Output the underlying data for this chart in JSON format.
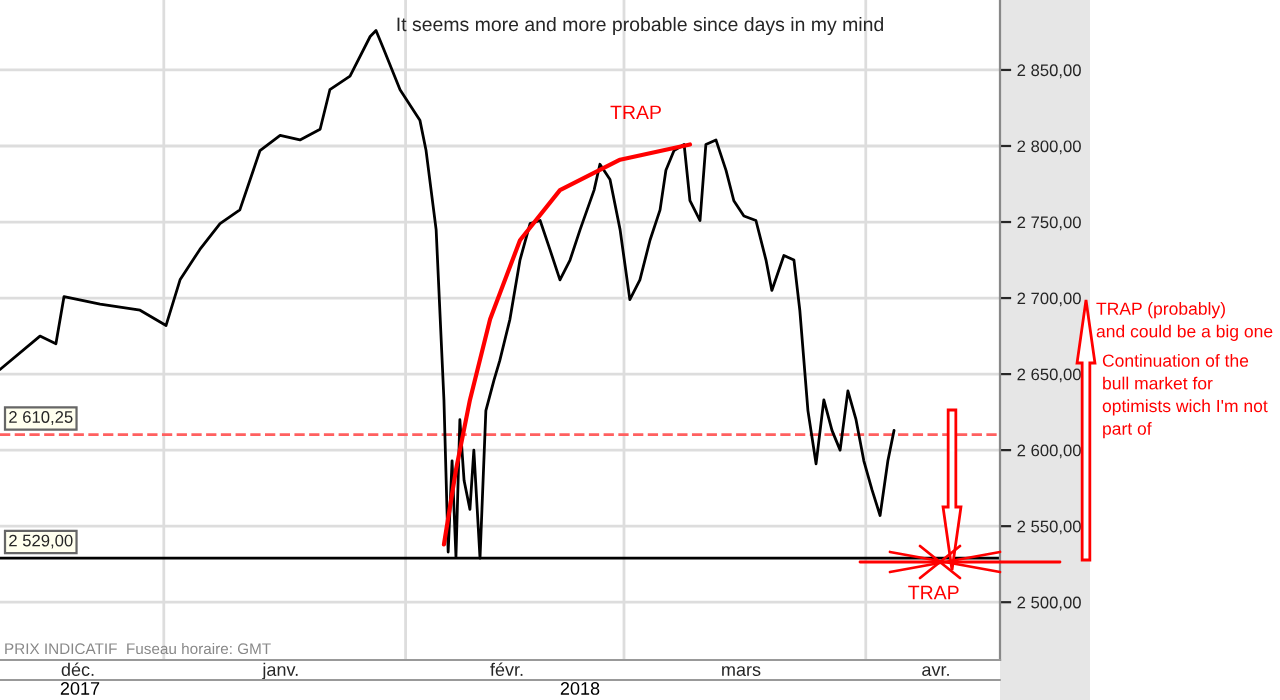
{
  "chart_data": {
    "type": "line",
    "title": "It seems more and more probable since days in my mind",
    "x": [
      "2017-12-11T00:00",
      "2017-12-16T03:00",
      "2017-12-18T04:00",
      "2017-12-19T05:00",
      "2017-12-23T20:00",
      "2017-12-28T23:00",
      "2018-01-01T07:00",
      "2018-01-03T02:00",
      "2018-01-05T15:00",
      "2018-01-08T05:00",
      "2018-01-10T18:00",
      "2018-01-13T08:00",
      "2018-01-15T22:00",
      "2018-01-18T11:00",
      "2018-01-21T01:00",
      "2018-01-22T07:00",
      "2018-01-24T21:00",
      "2018-01-27T11:00",
      "2018-01-28T05:00",
      "2018-01-29T06:00",
      "2018-01-31T07:00",
      "2018-02-02T20:00",
      "2018-02-03T15:00",
      "2018-02-04T22:00",
      "2018-02-05T22:00",
      "2018-02-06T11:00",
      "2018-02-06T23:00",
      "2018-02-07T11:00",
      "2018-02-07T23:00",
      "2018-02-08T12:00",
      "2018-02-09T06:00",
      "2018-02-09T18:00",
      "2018-02-10T13:00",
      "2018-02-11T07:00",
      "2018-02-12T08:00",
      "2018-02-13T02:00",
      "2018-02-14T09:00",
      "2018-02-15T16:00",
      "2018-02-16T23:00",
      "2018-02-18T06:00",
      "2018-02-19T12:00",
      "2018-02-20T19:00",
      "2018-02-22T02:00",
      "2018-02-23T09:00",
      "2018-02-25T04:00",
      "2018-02-25T22:00",
      "2018-02-27T05:00",
      "2018-02-28T12:00",
      "2018-03-01T18:00",
      "2018-03-03T01:00",
      "2018-03-04T08:00",
      "2018-03-05T15:00",
      "2018-03-06T09:00",
      "2018-03-07T10:00",
      "2018-03-08T17:00",
      "2018-03-09T11:00",
      "2018-03-10T18:00",
      "2018-03-11T12:00",
      "2018-03-12T19:00",
      "2018-03-14T02:00",
      "2018-03-15T02:00",
      "2018-03-16T09:00",
      "2018-03-17T22:00",
      "2018-03-19T05:00",
      "2018-03-19T23:00",
      "2018-03-21T12:00",
      "2018-03-22T19:00",
      "2018-03-23T13:00",
      "2018-03-24T14:00",
      "2018-03-25T15:00",
      "2018-03-26T15:00",
      "2018-03-27T16:00",
      "2018-03-28T17:00",
      "2018-03-29T17:00",
      "2018-03-30T18:00",
      "2018-03-31T18:00",
      "2018-04-01T19:00",
      "2018-04-02T20:00",
      "2018-04-03T20:00",
      "2018-04-04T15:00"
    ],
    "series": [
      {
        "type": "line",
        "color": "#ff0000",
        "x": [
          "2018-02-05T22:00",
          "2018-02-07T11:00",
          "2018-02-09T06:00",
          "2018-02-11T20:00",
          "2018-02-15T16:00",
          "2018-02-20T19:00",
          "2018-02-28T12:00",
          "2018-03-09T11:00"
        ],
        "values": [
          2538,
          2587,
          2633,
          2686,
          2738,
          2771,
          2791,
          2801
        ]
      },
      {
        "color": "#000000",
        "values": [
          2653,
          2675,
          2670,
          2701,
          2696,
          2692,
          2682,
          2712,
          2732,
          2749,
          2758,
          2797,
          2807,
          2804,
          2811,
          2837,
          2846,
          2872,
          2876,
          2863,
          2837,
          2817,
          2797,
          2745,
          2633,
          2533,
          2593,
          2530,
          2620,
          2580,
          2561,
          2600,
          2529,
          2626,
          2646,
          2659,
          2686,
          2725,
          2749,
          2751,
          2732,
          2712,
          2725,
          2745,
          2771,
          2788,
          2778,
          2745,
          2699,
          2712,
          2738,
          2758,
          2784,
          2797,
          2801,
          2764,
          2751,
          2801,
          2804,
          2784,
          2764,
          2754,
          2751,
          2725,
          2705,
          2728,
          2725,
          2692,
          2626,
          2591,
          2633,
          2613,
          2600,
          2639,
          2620,
          2593,
          2574,
          2557,
          2593,
          2613
        ]
      }
    ],
    "xlim": [
      "2017-12-11T00:00",
      "2018-04-18T05:00"
    ],
    "xticks": [
      {
        "value": "2017-12-21",
        "label": "déc."
      },
      {
        "value": "2018-01-01",
        "label": null
      },
      {
        "value": "2018-01-16",
        "label": "janv."
      },
      {
        "value": "2018-02-01",
        "label": null
      },
      {
        "value": "2018-02-14",
        "label": "févr."
      },
      {
        "value": "2018-03-01",
        "label": null
      },
      {
        "value": "2018-03-16",
        "label": "mars"
      },
      {
        "value": "2018-04-01",
        "label": null
      },
      {
        "value": "2018-04-10",
        "label": "avr."
      }
    ],
    "ylim": [
      2462,
      2896
    ],
    "yticks": [
      {
        "value": 2500,
        "label": "2 500,00"
      },
      {
        "value": 2550,
        "label": "2 550,00"
      },
      {
        "value": 2600,
        "label": "2 600,00"
      },
      {
        "value": 2650,
        "label": "2 650,00"
      },
      {
        "value": 2700,
        "label": "2 700,00"
      },
      {
        "value": 2750,
        "label": "2 750,00"
      },
      {
        "value": 2800,
        "label": "2 800,00"
      },
      {
        "value": 2850,
        "label": "2 850,00"
      }
    ],
    "ref_lines": [
      {
        "axis": "y",
        "value": 2529,
        "label": "2 529,00",
        "color": "#000000",
        "line_style": "solid"
      },
      {
        "axis": "y",
        "value": 2610.25,
        "label": "2 610,25",
        "color": "#ff6060",
        "line_style": "dashed"
      }
    ],
    "grid": true,
    "marker": "none",
    "line_style": "solid",
    "annotations": [
      "TRAP",
      {
        "text": "TRAP",
        "x": "2018-04-09T17:00",
        "y": 2529
      },
      "TRAP (probably)\nand could be a big one",
      "Continuation of the\nbull market for\noptimists wich I'm not\npart of",
      "PRIX INDICATIF  Fuseau horaire: GMT",
      "2017",
      "2018"
    ]
  }
}
